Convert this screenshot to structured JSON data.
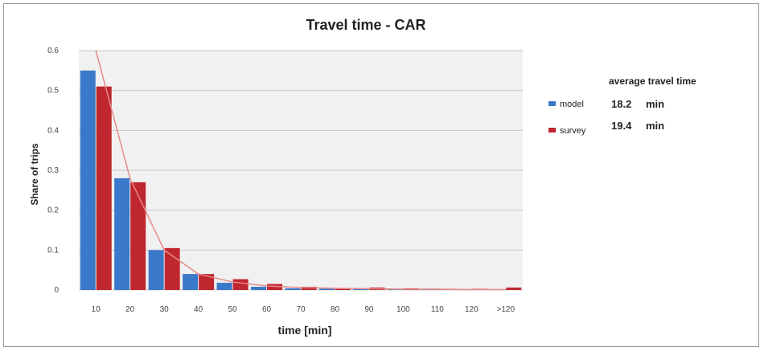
{
  "chart_data": {
    "type": "bar",
    "title": "Travel time  - CAR",
    "xlabel": "time [min]",
    "ylabel": "Share of trips",
    "categories": [
      "10",
      "20",
      "30",
      "40",
      "50",
      "60",
      "70",
      "80",
      "90",
      "100",
      "110",
      "120",
      ">120"
    ],
    "ylim": [
      0,
      0.6
    ],
    "yticks": [
      "0",
      "0.1",
      "0.2",
      "0.3",
      "0.4",
      "0.5",
      "0.6"
    ],
    "grid": true,
    "series": [
      {
        "name": "model",
        "color": "#3a78c9",
        "values": [
          0.55,
          0.28,
          0.1,
          0.04,
          0.018,
          0.008,
          0.004,
          0.003,
          0.002,
          0.002,
          0.001,
          0.001,
          0.001
        ]
      },
      {
        "name": "survey",
        "color": "#c0262d",
        "values": [
          0.51,
          0.27,
          0.105,
          0.04,
          0.027,
          0.015,
          0.008,
          0.005,
          0.006,
          0.004,
          0.003,
          0.003,
          0.006
        ]
      }
    ],
    "trend_line": {
      "color": "#e58a8a",
      "values": [
        0.6,
        0.28,
        0.1,
        0.04,
        0.02,
        0.01,
        0.006,
        0.004,
        0.003,
        0.002,
        0.002,
        0.001,
        0.001
      ]
    },
    "legend": {
      "position": "right",
      "header": "average travel time",
      "entries": [
        {
          "name": "model",
          "value": "18.2",
          "unit": "min"
        },
        {
          "name": "survey",
          "value": "19.4",
          "unit": "min"
        }
      ]
    }
  }
}
